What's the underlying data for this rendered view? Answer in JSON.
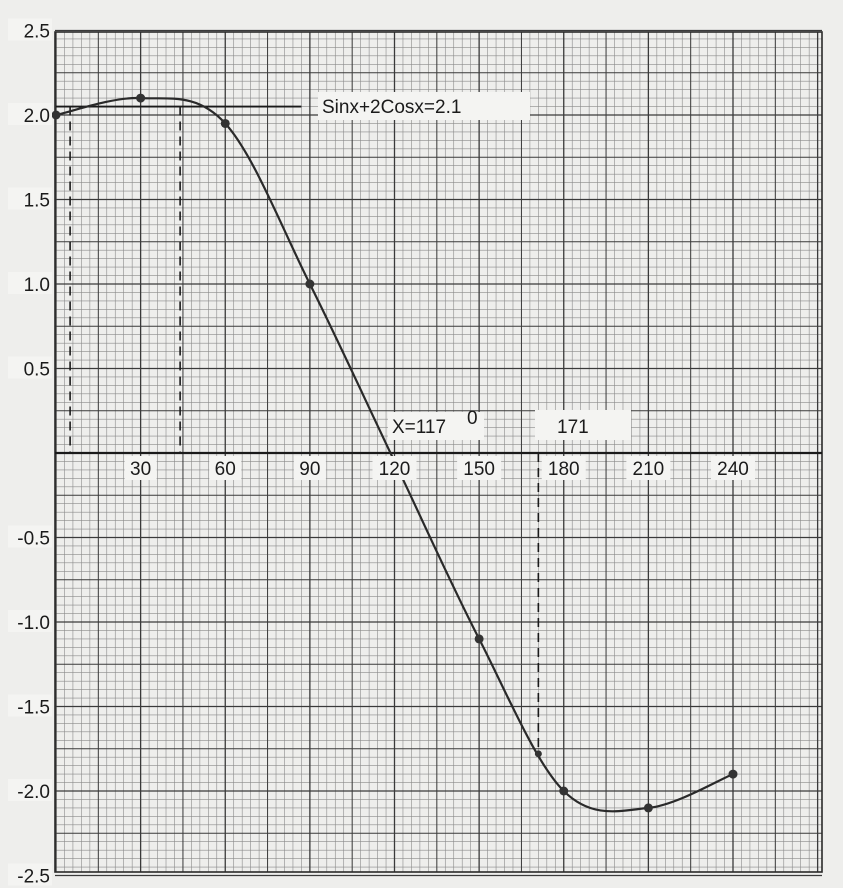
{
  "chart_data": {
    "type": "line",
    "title": "",
    "xlabel": "",
    "ylabel": "",
    "x": [
      0,
      30,
      60,
      90,
      120,
      150,
      180,
      210,
      240
    ],
    "y": [
      2.0,
      2.1,
      1.95,
      1.0,
      -0.05,
      -1.1,
      -2.0,
      -2.1,
      -1.9
    ],
    "xlim": [
      -5,
      260
    ],
    "ylim": [
      -2.5,
      2.5
    ],
    "x_tick_labels": [
      "30",
      "60",
      "90",
      "120",
      "150",
      "180",
      "210",
      "240"
    ],
    "x_tick_values": [
      30,
      60,
      90,
      120,
      150,
      180,
      210,
      240
    ],
    "y_tick_labels": [
      "2.5",
      "2.0",
      "1.5",
      "1.0",
      "0.5",
      "-0.5",
      "-1.0",
      "-1.5",
      "-2.0",
      "-2.5"
    ],
    "y_tick_values": [
      2.5,
      2.0,
      1.5,
      1.0,
      0.5,
      -0.5,
      -1.0,
      -1.5,
      -2.0,
      -2.5
    ],
    "extra_point": {
      "x": 171,
      "y": -1.78
    },
    "grid": true,
    "annotations": {
      "equation": "Sinx+2Cosx=2.1",
      "equation_y": 2.05,
      "equation_x_range": [
        0,
        87
      ],
      "root_label": "X=117",
      "root_label_sup": "0",
      "second_label": "171",
      "dashed_lines": [
        {
          "x": 5,
          "y_from": 2.05,
          "y_to": 0
        },
        {
          "x": 44,
          "y_from": 2.05,
          "y_to": 0
        },
        {
          "x": 171,
          "y_from": 0,
          "y_to": -1.78
        }
      ]
    },
    "colors": {
      "curve": "#2a2a2a",
      "grid_minor": "#8a8a8a",
      "grid_major": "#3a3a3a",
      "paper": "#eeeeec"
    }
  }
}
